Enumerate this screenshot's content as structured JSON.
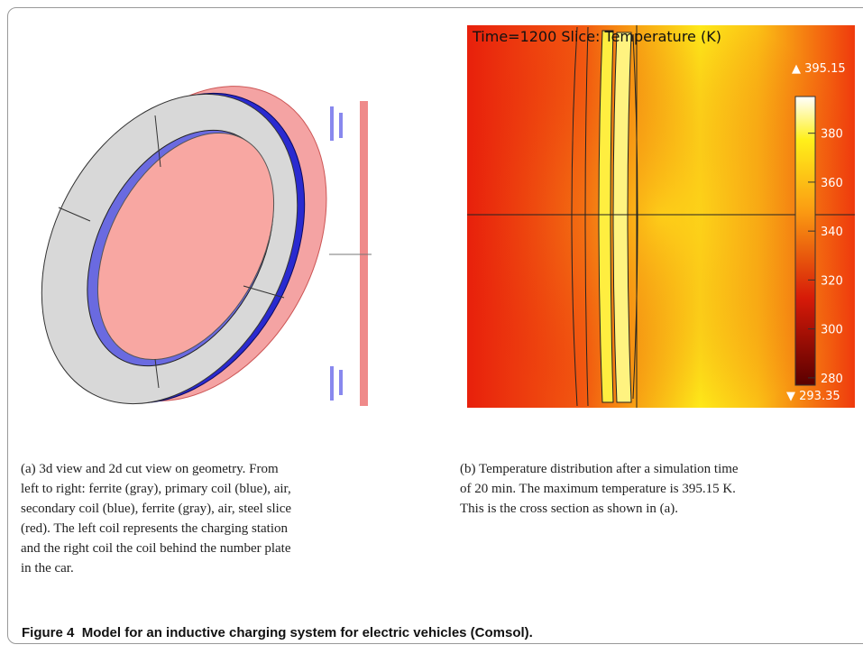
{
  "figure": {
    "label": "Figure 4",
    "caption": "Model for an inductive charging system for electric vehicles (Comsol).",
    "panel_a": {
      "caption_lines": [
        "(a) 3d view and 2d cut view on geometry. From",
        "left to right: ferrite (gray), primary coil (blue), air,",
        "secondary coil (blue), ferrite (gray), air, steel slice",
        "(red). The left coil represents the charging station",
        "and the right coil the coil behind the number plate",
        "in the car."
      ]
    },
    "panel_b": {
      "title": "Time=1200 Slice: Temperature (K)",
      "max_label": "▲ 395.15",
      "min_label": "▼ 293.35",
      "colorbar": {
        "lim": [
          277,
          395
        ],
        "ticks": [
          280,
          300,
          320,
          340,
          360,
          380
        ]
      },
      "caption_lines": [
        "(b) Temperature distribution after a simulation time",
        "of 20 min. The maximum temperature is 395.15 K.",
        "This is the cross section as shown in (a)."
      ]
    }
  }
}
